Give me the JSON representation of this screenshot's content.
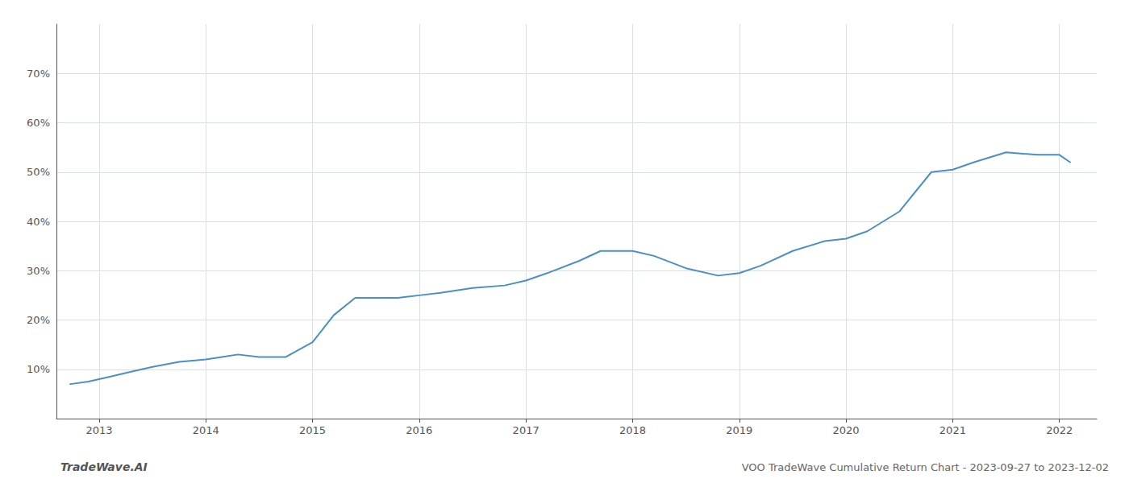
{
  "chart_data": {
    "type": "line",
    "title": "VOO TradeWave Cumulative Return Chart - 2023-09-27 to 2023-12-02",
    "annotations": [
      "TradeWave.AI"
    ],
    "color": "#4a90c4",
    "x": [
      2012.73,
      2012.9,
      2013.1,
      2013.3,
      2013.5,
      2013.75,
      2014.0,
      2014.15,
      2014.3,
      2014.5,
      2014.75,
      2015.0,
      2015.2,
      2015.4,
      2015.6,
      2015.8,
      2016.0,
      2016.2,
      2016.5,
      2016.8,
      2017.0,
      2017.2,
      2017.5,
      2017.7,
      2018.0,
      2018.2,
      2018.5,
      2018.8,
      2019.0,
      2019.2,
      2019.5,
      2019.8,
      2020.0,
      2020.2,
      2020.5,
      2020.8,
      2021.0,
      2021.2,
      2021.5,
      2021.8,
      2022.0,
      2022.1
    ],
    "values": [
      7.0,
      7.5,
      8.5,
      9.5,
      10.5,
      11.5,
      12.0,
      12.5,
      13.0,
      12.5,
      12.5,
      15.5,
      21.0,
      24.5,
      24.5,
      24.5,
      25.0,
      25.5,
      26.5,
      27.0,
      28.0,
      29.5,
      32.0,
      34.0,
      34.0,
      33.0,
      30.5,
      29.0,
      29.5,
      31.0,
      34.0,
      36.0,
      36.5,
      38.0,
      42.0,
      50.0,
      50.5,
      52.0,
      54.0,
      53.5,
      53.5,
      52.0
    ],
    "xlim": [
      2012.6,
      2022.35
    ],
    "xticks": [
      2013,
      2014,
      2015,
      2016,
      2017,
      2018,
      2019,
      2020,
      2021,
      2022
    ],
    "ylim": [
      0,
      80
    ],
    "yticks": [
      {
        "value": 10,
        "label": "10%"
      },
      {
        "value": 20,
        "label": "20%"
      },
      {
        "value": 30,
        "label": "30%"
      },
      {
        "value": 40,
        "label": "40%"
      },
      {
        "value": 50,
        "label": "50%"
      },
      {
        "value": 60,
        "label": "60%"
      },
      {
        "value": 70,
        "label": "70%"
      }
    ],
    "grid": true
  }
}
